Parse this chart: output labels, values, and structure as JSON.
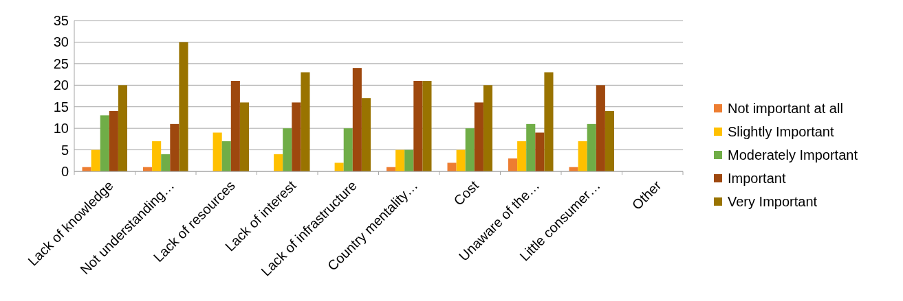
{
  "chart_data": {
    "type": "bar",
    "categories": [
      "Lack of knowledge",
      "Not understanding…",
      "Lack of resources",
      "Lack of interest",
      "Lack of infrastructure",
      "Country mentality…",
      "Cost",
      "Unaware of the…",
      "Little consumer…",
      "Other"
    ],
    "series": [
      {
        "name": "Not important at all",
        "color": "#ed7d31",
        "values": [
          1,
          1,
          0,
          0,
          0,
          1,
          2,
          3,
          1,
          0
        ]
      },
      {
        "name": "Slightly Important",
        "color": "#ffc000",
        "values": [
          5,
          7,
          9,
          4,
          2,
          5,
          5,
          7,
          7,
          0
        ]
      },
      {
        "name": "Moderately Important",
        "color": "#70ad47",
        "values": [
          13,
          4,
          7,
          10,
          10,
          5,
          10,
          11,
          11,
          0
        ]
      },
      {
        "name": "Important",
        "color": "#9e480e",
        "values": [
          14,
          11,
          21,
          16,
          24,
          21,
          16,
          9,
          20,
          0
        ]
      },
      {
        "name": "Very Important",
        "color": "#997300",
        "values": [
          20,
          30,
          16,
          23,
          17,
          21,
          20,
          23,
          14,
          0
        ]
      }
    ],
    "ylim": [
      0,
      35
    ],
    "yticks": [
      0,
      5,
      10,
      15,
      20,
      25,
      30,
      35
    ],
    "grid": "y",
    "legend": "right"
  }
}
